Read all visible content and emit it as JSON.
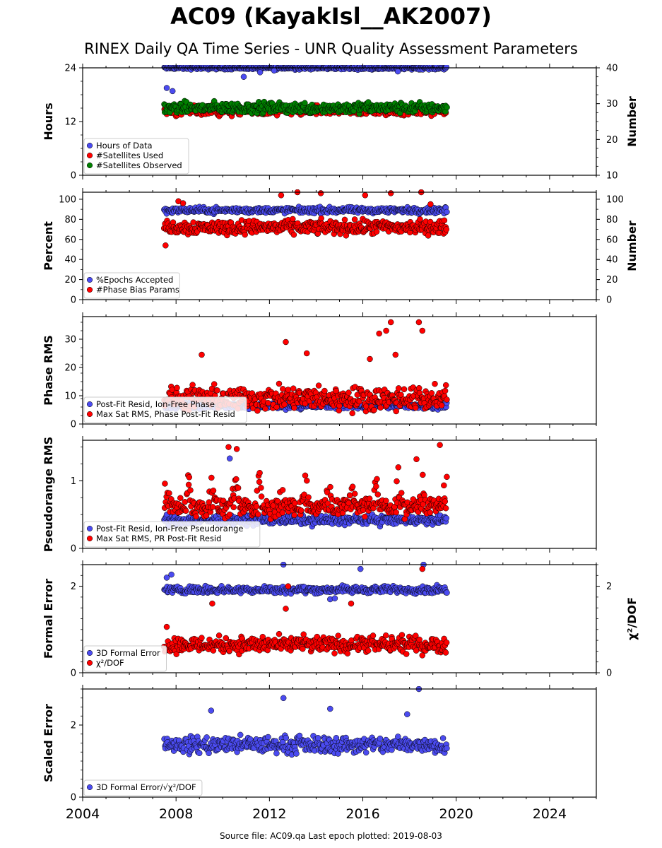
{
  "title": "AC09 (KayakIsl__AK2007)",
  "subtitle": "RINEX Daily QA Time Series - UNR Quality Assessment Parameters",
  "footer": "Source file: AC09.qa Last epoch plotted: 2019-08-03",
  "x_axis": {
    "range": [
      2004,
      2026
    ],
    "ticks": [
      2004,
      2008,
      2012,
      2016,
      2020,
      2024
    ],
    "data_start": 2007.5,
    "data_end": 2019.59
  },
  "colors": {
    "blue": "#4b4bf0",
    "red": "#ff0000",
    "green": "#008000",
    "edge": "#000000"
  },
  "chart_data": [
    {
      "type": "scatter",
      "ylabel": "Hours",
      "ylabel_right": "Number",
      "ylim": [
        0,
        24
      ],
      "yticks": [
        "0",
        "12",
        "24"
      ],
      "ylim_right": [
        10,
        40
      ],
      "yticks_right": [
        "10",
        "20",
        "30",
        "40"
      ],
      "legend_location": "lower-left",
      "series": [
        {
          "name": "Hours of Data",
          "color": "blue",
          "axis": "left",
          "base": 24,
          "spread": 0.3,
          "outliers": [
            [
              2007.6,
              19.5
            ],
            [
              2007.85,
              18.8
            ],
            [
              2010.9,
              22.0
            ],
            [
              2011.6,
              23.0
            ],
            [
              2017.5,
              23.2
            ],
            [
              2012.2,
              23.4
            ]
          ]
        },
        {
          "name": "#Satellites Used",
          "color": "red",
          "axis": "right",
          "base": 28,
          "spread": 1.2,
          "outliers": [
            [
              2009.6,
              30.0
            ]
          ]
        },
        {
          "name": "#Satellites Observed",
          "color": "green",
          "axis": "right",
          "base": 28.8,
          "spread": 1.3,
          "outliers": []
        }
      ]
    },
    {
      "type": "scatter",
      "ylabel": "Percent",
      "ylabel_right": "Number",
      "ylim": [
        0,
        107
      ],
      "yticks": [
        "0",
        "20",
        "40",
        "60",
        "80",
        "100"
      ],
      "ylim_right": [
        0,
        107
      ],
      "yticks_right": [
        "0",
        "20",
        "40",
        "60",
        "80",
        "100"
      ],
      "legend_location": "lower-left",
      "series": [
        {
          "name": "%Epochs Accepted",
          "color": "blue",
          "axis": "left",
          "base": 89,
          "spread": 2.5,
          "outliers": []
        },
        {
          "name": "#Phase Bias Params",
          "color": "red",
          "axis": "right",
          "base": 72,
          "spread": 6,
          "outliers": [
            [
              2007.55,
              54
            ],
            [
              2008.1,
              98
            ],
            [
              2008.3,
              96
            ],
            [
              2012.5,
              104
            ],
            [
              2013.2,
              107
            ],
            [
              2014.2,
              106
            ],
            [
              2016.1,
              104
            ],
            [
              2017.2,
              106
            ],
            [
              2018.5,
              107
            ],
            [
              2018.9,
              95
            ]
          ]
        }
      ]
    },
    {
      "type": "scatter",
      "ylabel": "Phase RMS",
      "ylim": [
        0,
        38
      ],
      "yticks": [
        "0",
        "10",
        "20",
        "30"
      ],
      "legend_location": "lower-left",
      "series": [
        {
          "name": "Post-Fit Resid, Ion-Free Phase",
          "color": "blue",
          "axis": "left",
          "base": 6.5,
          "spread": 1.0,
          "outliers": []
        },
        {
          "name": "Max Sat RMS, Phase Post-Fit Resid",
          "color": "red",
          "axis": "left",
          "base": 9,
          "spread": 3.5,
          "outliers": [
            [
              2009.1,
              24.5
            ],
            [
              2012.7,
              29
            ],
            [
              2013.6,
              25
            ],
            [
              2016.7,
              32
            ],
            [
              2017.0,
              33
            ],
            [
              2017.2,
              36
            ],
            [
              2018.4,
              36
            ],
            [
              2018.55,
              33
            ],
            [
              2017.4,
              24.5
            ],
            [
              2016.3,
              23
            ]
          ]
        }
      ]
    },
    {
      "type": "scatter",
      "ylabel": "Pseudorange RMS",
      "ylim": [
        0,
        1.6
      ],
      "yticks": [
        "0",
        "1"
      ],
      "legend_location": "lower-left",
      "series": [
        {
          "name": "Post-Fit Resid, Ion-Free Pseudorange",
          "color": "blue",
          "axis": "left",
          "base": 0.42,
          "spread": 0.06,
          "outliers": [
            [
              2010.3,
              1.33
            ]
          ]
        },
        {
          "name": "Max Sat RMS, PR Post-Fit Resid",
          "color": "red",
          "axis": "left",
          "base": 0.6,
          "spread": 0.12,
          "seasonal": 0.55,
          "outliers": [
            [
              2010.25,
              1.5
            ],
            [
              2010.6,
              1.47
            ],
            [
              2019.3,
              1.53
            ],
            [
              2018.3,
              1.32
            ]
          ]
        }
      ]
    },
    {
      "type": "scatter",
      "ylabel": "Formal Error",
      "ylabel_right": "χ²/DOF",
      "ylim": [
        0,
        2.5
      ],
      "yticks": [
        "0",
        "2"
      ],
      "ylim_right": [
        0,
        2.5
      ],
      "yticks_right": [
        "0",
        "2"
      ],
      "legend_location": "lower-left",
      "series": [
        {
          "name": "3D Formal Error",
          "color": "blue",
          "axis": "left",
          "base": 1.92,
          "spread": 0.07,
          "outliers": [
            [
              2007.6,
              2.2
            ],
            [
              2007.8,
              2.27
            ],
            [
              2012.6,
              2.5
            ],
            [
              2015.9,
              2.4
            ],
            [
              2018.6,
              2.5
            ],
            [
              2014.6,
              1.7
            ],
            [
              2014.8,
              1.72
            ]
          ]
        },
        {
          "name": "χ²/DOF",
          "color": "red",
          "axis": "right",
          "base": 0.65,
          "spread": 0.16,
          "outliers": [
            [
              2007.6,
              1.06
            ],
            [
              2009.55,
              1.6
            ],
            [
              2012.7,
              1.48
            ],
            [
              2015.5,
              1.6
            ],
            [
              2018.55,
              2.4
            ],
            [
              2012.8,
              2.0
            ]
          ]
        }
      ]
    },
    {
      "type": "scatter",
      "ylabel": "Scaled Error",
      "ylim": [
        0,
        3.0
      ],
      "yticks": [
        "0",
        "2"
      ],
      "legend_location": "lower-left",
      "series": [
        {
          "name": "3D Formal Error/√χ²/DOF",
          "color": "blue",
          "axis": "left",
          "base": 1.45,
          "spread": 0.2,
          "outliers": [
            [
              2009.5,
              2.4
            ],
            [
              2012.6,
              2.75
            ],
            [
              2014.6,
              2.45
            ],
            [
              2018.4,
              3.0
            ],
            [
              2017.9,
              2.3
            ]
          ]
        }
      ]
    }
  ]
}
